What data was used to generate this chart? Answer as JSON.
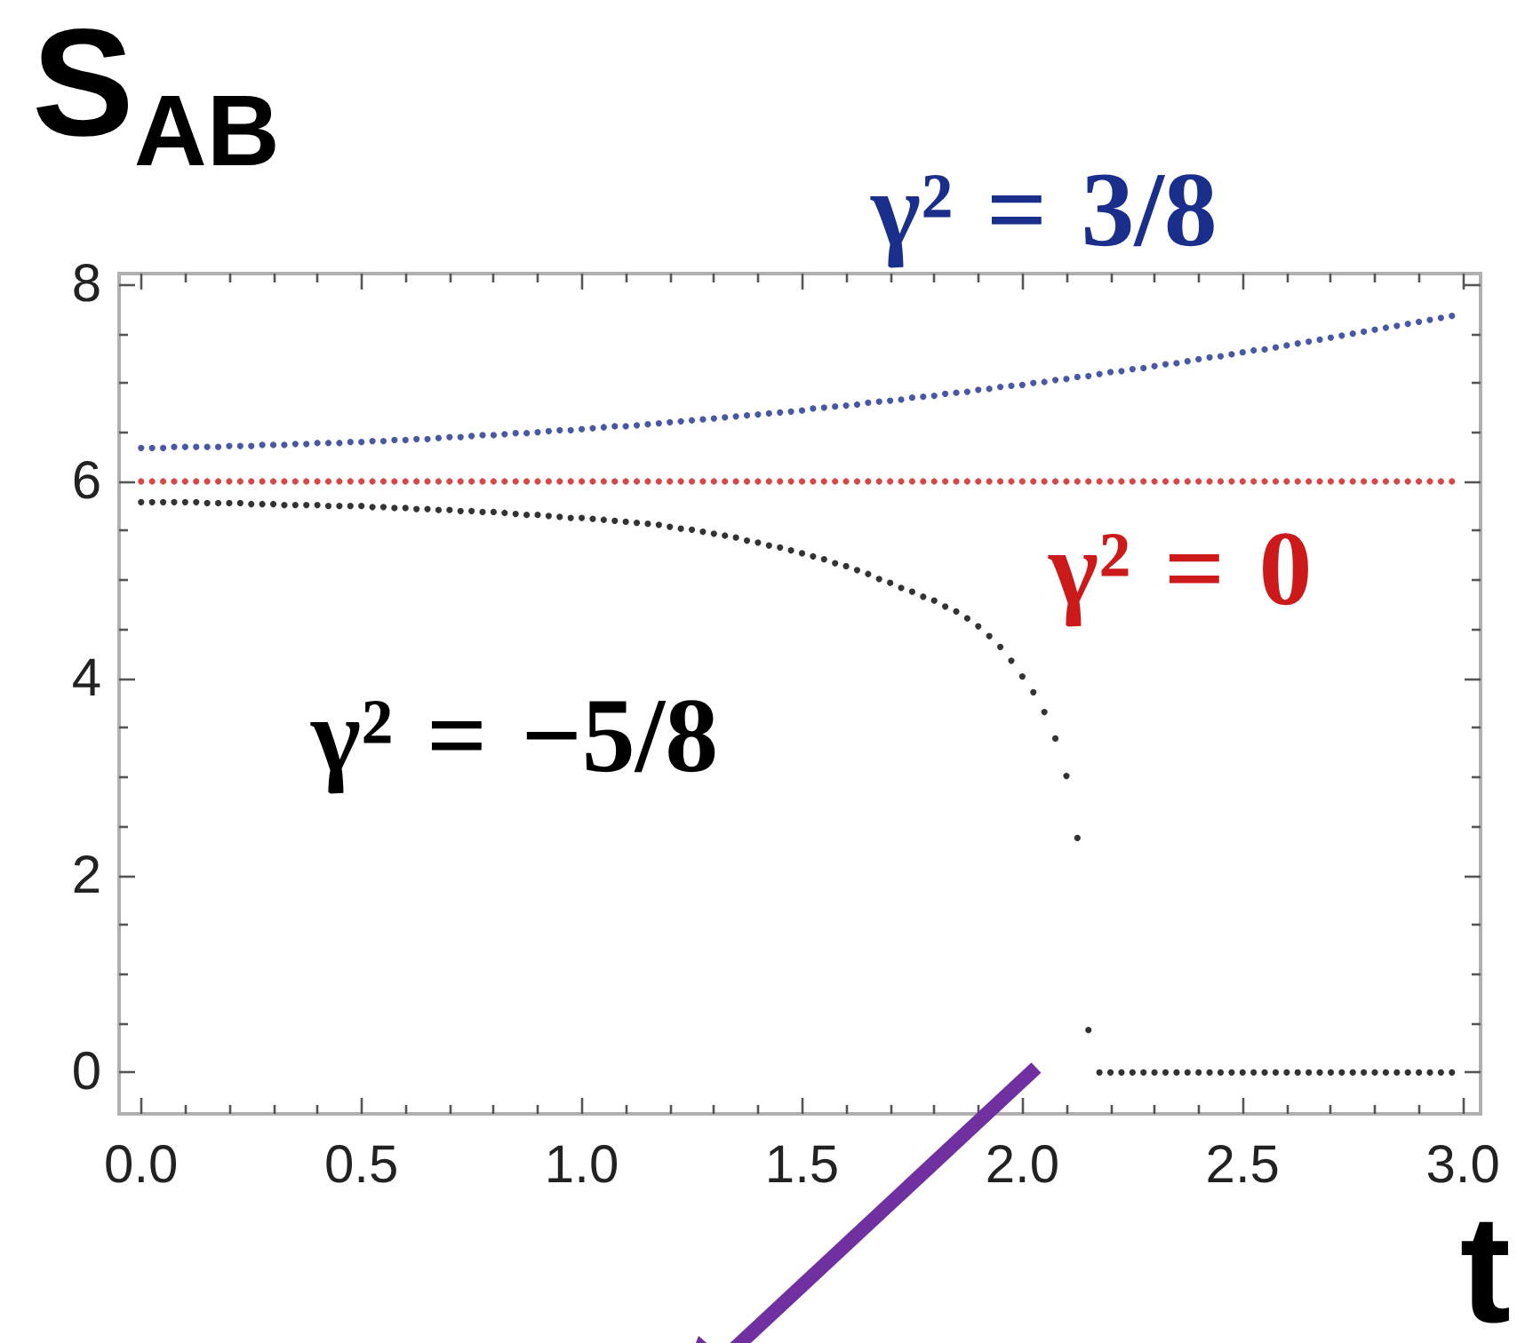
{
  "chart_data": {
    "type": "scatter",
    "xlabel": "t",
    "ylabel": "S$_{AB}$",
    "x": [
      0,
      0.025,
      0.05,
      0.075,
      0.1,
      0.125,
      0.15,
      0.175,
      0.2,
      0.225,
      0.25,
      0.275,
      0.3,
      0.325,
      0.35,
      0.375,
      0.4,
      0.425,
      0.45,
      0.475,
      0.5,
      0.525,
      0.55,
      0.575,
      0.6,
      0.625,
      0.65,
      0.675,
      0.7,
      0.725,
      0.75,
      0.775,
      0.8,
      0.825,
      0.85,
      0.875,
      0.9,
      0.925,
      0.95,
      0.975,
      1,
      1.025,
      1.05,
      1.075,
      1.1,
      1.125,
      1.15,
      1.175,
      1.2,
      1.225,
      1.25,
      1.275,
      1.3,
      1.325,
      1.35,
      1.375,
      1.4,
      1.425,
      1.45,
      1.475,
      1.5,
      1.525,
      1.55,
      1.575,
      1.6,
      1.625,
      1.65,
      1.675,
      1.7,
      1.725,
      1.75,
      1.775,
      1.8,
      1.825,
      1.85,
      1.875,
      1.9,
      1.925,
      1.95,
      1.975,
      2,
      2.025,
      2.05,
      2.075,
      2.1,
      2.125,
      2.15,
      2.175,
      2.2,
      2.225,
      2.25,
      2.275,
      2.3,
      2.325,
      2.35,
      2.375,
      2.4,
      2.425,
      2.45,
      2.475,
      2.5,
      2.525,
      2.55,
      2.575,
      2.6,
      2.625,
      2.65,
      2.675,
      2.7,
      2.725,
      2.75,
      2.775,
      2.8,
      2.825,
      2.85,
      2.875,
      2.9,
      2.925,
      2.95,
      2.975
    ],
    "series": [
      {
        "name": "γ² = 3/8",
        "color": "#1a2e8c",
        "values": [
          6.34,
          6.34,
          6.34,
          6.35,
          6.35,
          6.35,
          6.35,
          6.35,
          6.36,
          6.36,
          6.36,
          6.37,
          6.37,
          6.37,
          6.38,
          6.38,
          6.39,
          6.39,
          6.39,
          6.4,
          6.4,
          6.41,
          6.41,
          6.42,
          6.42,
          6.43,
          6.43,
          6.44,
          6.45,
          6.45,
          6.46,
          6.47,
          6.47,
          6.48,
          6.49,
          6.49,
          6.5,
          6.51,
          6.52,
          6.52,
          6.53,
          6.54,
          6.55,
          6.56,
          6.56,
          6.57,
          6.58,
          6.59,
          6.6,
          6.61,
          6.62,
          6.63,
          6.64,
          6.65,
          6.66,
          6.67,
          6.68,
          6.69,
          6.7,
          6.71,
          6.72,
          6.74,
          6.75,
          6.76,
          6.77,
          6.78,
          6.8,
          6.81,
          6.82,
          6.83,
          6.85,
          6.86,
          6.87,
          6.89,
          6.9,
          6.91,
          6.93,
          6.94,
          6.96,
          6.97,
          6.98,
          7.0,
          7.01,
          7.03,
          7.04,
          7.06,
          7.07,
          7.09,
          7.11,
          7.12,
          7.14,
          7.15,
          7.17,
          7.19,
          7.2,
          7.22,
          7.24,
          7.26,
          7.27,
          7.29,
          7.31,
          7.33,
          7.34,
          7.36,
          7.38,
          7.4,
          7.42,
          7.44,
          7.46,
          7.48,
          7.5,
          7.52,
          7.54,
          7.56,
          7.58,
          7.6,
          7.62,
          7.64,
          7.66,
          7.68
        ]
      },
      {
        "name": "γ² = 0",
        "color": "#cc1a1a",
        "values": [
          6,
          6,
          6,
          6,
          6,
          6,
          6,
          6,
          6,
          6,
          6,
          6,
          6,
          6,
          6,
          6,
          6,
          6,
          6,
          6,
          6,
          6,
          6,
          6,
          6,
          6,
          6,
          6,
          6,
          6,
          6,
          6,
          6,
          6,
          6,
          6,
          6,
          6,
          6,
          6,
          6,
          6,
          6,
          6,
          6,
          6,
          6,
          6,
          6,
          6,
          6,
          6,
          6,
          6,
          6,
          6,
          6,
          6,
          6,
          6,
          6,
          6,
          6,
          6,
          6,
          6,
          6,
          6,
          6,
          6,
          6,
          6,
          6,
          6,
          6,
          6,
          6,
          6,
          6,
          6,
          6,
          6,
          6,
          6,
          6,
          6,
          6,
          6,
          6,
          6,
          6,
          6,
          6,
          6,
          6,
          6,
          6,
          6,
          6,
          6,
          6,
          6,
          6,
          6,
          6,
          6,
          6,
          6,
          6,
          6,
          6,
          6,
          6,
          6,
          6,
          6,
          6,
          6,
          6,
          6
        ]
      },
      {
        "name": "γ² = −5/8",
        "color": "#000000",
        "values": [
          5.79,
          5.79,
          5.79,
          5.79,
          5.79,
          5.79,
          5.78,
          5.78,
          5.78,
          5.78,
          5.77,
          5.77,
          5.77,
          5.76,
          5.76,
          5.76,
          5.76,
          5.75,
          5.75,
          5.75,
          5.75,
          5.74,
          5.74,
          5.73,
          5.73,
          5.72,
          5.72,
          5.71,
          5.71,
          5.7,
          5.7,
          5.69,
          5.69,
          5.68,
          5.67,
          5.66,
          5.66,
          5.65,
          5.64,
          5.63,
          5.63,
          5.62,
          5.61,
          5.6,
          5.59,
          5.58,
          5.57,
          5.56,
          5.54,
          5.52,
          5.51,
          5.49,
          5.47,
          5.45,
          5.43,
          5.4,
          5.38,
          5.35,
          5.33,
          5.3,
          5.27,
          5.24,
          5.21,
          5.17,
          5.14,
          5.1,
          5.06,
          5.01,
          4.97,
          4.92,
          4.88,
          4.83,
          4.79,
          4.73,
          4.68,
          4.61,
          4.53,
          4.43,
          4.32,
          4.18,
          4.02,
          3.86,
          3.66,
          3.39,
          3.01,
          2.38,
          0.43,
          0,
          0,
          0,
          0,
          0,
          0,
          0,
          0,
          0,
          0,
          0,
          0,
          0,
          0,
          0,
          0,
          0,
          0,
          0,
          0,
          0,
          0,
          0,
          0,
          0,
          0,
          0,
          0,
          0,
          0,
          0,
          0,
          0
        ]
      }
    ],
    "xlim": [
      -0.05,
      3.04
    ],
    "ylim": [
      -0.42,
      8.11
    ],
    "xticks": [
      {
        "value": 0,
        "label": "0.0"
      },
      {
        "value": 0.1,
        "label": null
      },
      {
        "value": 0.2,
        "label": null
      },
      {
        "value": 0.3,
        "label": null
      },
      {
        "value": 0.4,
        "label": null
      },
      0.5,
      {
        "value": 0.6,
        "label": null
      },
      {
        "value": 0.7,
        "label": null
      },
      {
        "value": 0.8,
        "label": null
      },
      {
        "value": 0.9,
        "label": null
      },
      {
        "value": 1,
        "label": "1.0"
      },
      {
        "value": 1.1,
        "label": null
      },
      {
        "value": 1.2,
        "label": null
      },
      {
        "value": 1.3,
        "label": null
      },
      {
        "value": 1.4,
        "label": null
      },
      1.5,
      {
        "value": 1.6,
        "label": null
      },
      {
        "value": 1.7,
        "label": null
      },
      {
        "value": 1.8,
        "label": null
      },
      {
        "value": 1.9,
        "label": null
      },
      {
        "value": 2,
        "label": "2.0"
      },
      {
        "value": 2.1,
        "label": null
      },
      {
        "value": 2.2,
        "label": null
      },
      {
        "value": 2.3,
        "label": null
      },
      {
        "value": 2.4,
        "label": null
      },
      2.5,
      {
        "value": 2.6,
        "label": null
      },
      {
        "value": 2.7,
        "label": null
      },
      {
        "value": 2.8,
        "label": null
      },
      {
        "value": 2.9,
        "label": null
      },
      {
        "value": 3,
        "label": "3.0"
      }
    ],
    "yticks": [
      0,
      {
        "value": 0.5,
        "label": null
      },
      {
        "value": 1,
        "label": null
      },
      {
        "value": 1.5,
        "label": null
      },
      2,
      {
        "value": 2.5,
        "label": null
      },
      {
        "value": 3,
        "label": null
      },
      {
        "value": 3.5,
        "label": null
      },
      4,
      {
        "value": 4.5,
        "label": null
      },
      {
        "value": 5,
        "label": null
      },
      {
        "value": 5.5,
        "label": null
      },
      6,
      {
        "value": 6.5,
        "label": null
      },
      {
        "value": 7,
        "label": null
      },
      {
        "value": 7.5,
        "label": null
      },
      8
    ],
    "marker": "circle"
  }
}
